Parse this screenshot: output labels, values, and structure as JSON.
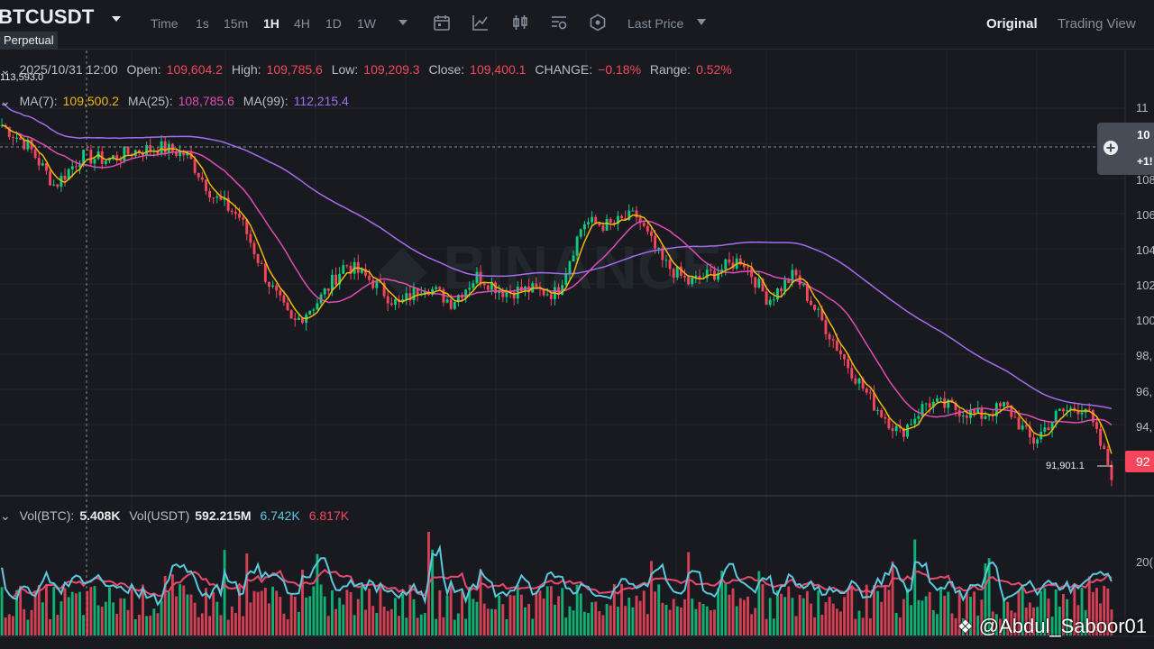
{
  "header": {
    "symbol": "BTCUSDT",
    "contract_type": "Perpetual",
    "timeframes": [
      "Time",
      "1s",
      "15m",
      "1H",
      "4H",
      "1D",
      "1W"
    ],
    "active_timeframe": "1H",
    "price_type": "Last Price",
    "views": [
      "Original",
      "Trading View"
    ],
    "active_view": "Original",
    "icons": [
      "calendar-icon",
      "indicator-icon",
      "candle-style-icon",
      "settings-icon",
      "hexagon-icon"
    ]
  },
  "ohlc": {
    "date": "2025/10/31 12:00",
    "open_label": "Open:",
    "open": "109,604.2",
    "high_label": "High:",
    "high": "109,785.6",
    "low_label": "Low:",
    "low": "109,209.3",
    "close_label": "Close:",
    "close": "109,400.1",
    "change_label": "CHANGE:",
    "change": "−0.18%",
    "range_label": "Range:",
    "range": "0.52%"
  },
  "ma": {
    "ma7_label": "MA(7):",
    "ma7": "109,500.2",
    "ma25_label": "MA(25):",
    "ma25": "108,785.6",
    "ma99_label": "MA(99):",
    "ma99": "112,215.4"
  },
  "volume": {
    "vol_btc_label": "Vol(BTC):",
    "vol_btc": "5.408K",
    "vol_usdt_label": "Vol(USDT)",
    "vol_usdt": "592.215M",
    "ma1": "6.742K",
    "ma2": "6.817K"
  },
  "chart": {
    "price_axis_labels": [
      "11",
      "108",
      "106",
      "104",
      "102",
      "100",
      "98,",
      "96,",
      "94,"
    ],
    "crosshair_price": "10",
    "crosshair_change": "+1!",
    "current_price": "92",
    "low_marker": "91,901.1",
    "high_marker": "113,593.0",
    "volume_axis_label": "20(",
    "colors": {
      "up": "#0ecb81",
      "down": "#f6465d",
      "ma7": "#f0b90b",
      "ma25": "#e04db4",
      "ma99": "#a66cf0",
      "vol_ma1": "#5bc8dc",
      "vol_ma2": "#e84a6f"
    }
  },
  "chart_data": {
    "type": "candlestick",
    "interval": "1H",
    "approx_close_path": [
      112400,
      111200,
      108900,
      110600,
      110400,
      110900,
      111100,
      110700,
      108300,
      107100,
      103600,
      100900,
      102300,
      104400,
      103400,
      102000,
      103200,
      102200,
      103700,
      102800,
      102900,
      102700,
      106800,
      106600,
      107200,
      104500,
      103300,
      103900,
      104700,
      102300,
      103800,
      101200,
      98600,
      96300,
      94600,
      96400,
      96100,
      95600,
      96200,
      94100,
      95800,
      96200,
      92300
    ],
    "ylim": [
      90500,
      114000
    ],
    "price_last": 92300
  },
  "footer": {
    "handle": "@Abdul_Saboor01"
  }
}
